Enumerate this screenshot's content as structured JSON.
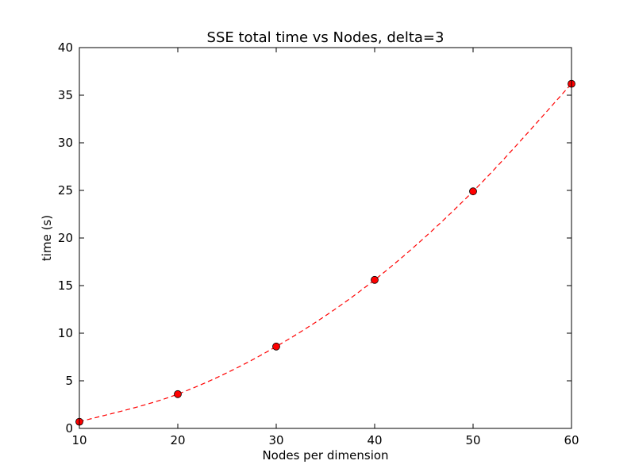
{
  "chart_data": {
    "type": "line",
    "title": "SSE total time vs Nodes, delta=3",
    "xlabel": "Nodes per dimension",
    "ylabel": "time (s)",
    "xlim": [
      10,
      60
    ],
    "ylim": [
      0,
      40
    ],
    "xticks": [
      "10",
      "20",
      "30",
      "40",
      "50",
      "60"
    ],
    "yticks": [
      "0",
      "5",
      "10",
      "15",
      "20",
      "25",
      "30",
      "35",
      "40"
    ],
    "grid": false,
    "series": [
      {
        "x": [
          10,
          20,
          30,
          40,
          50,
          60
        ],
        "y": [
          0.7,
          3.6,
          8.6,
          15.6,
          24.9,
          36.2
        ],
        "line_color": "#ff0000",
        "line_style": "dashed",
        "marker": "circle",
        "marker_color": "#ff0000"
      }
    ]
  }
}
